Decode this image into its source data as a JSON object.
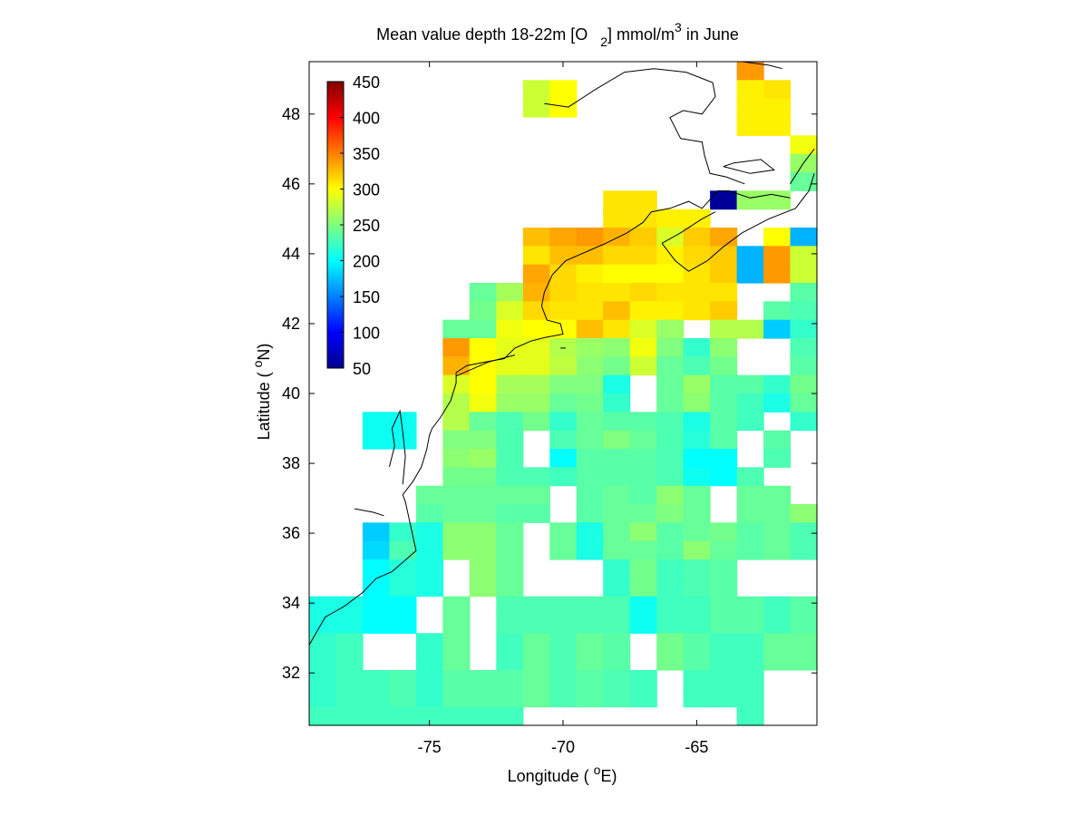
{
  "title": {
    "prefix": "Mean value depth 18-22m [O",
    "sub": "2",
    "mid": "] mmol/m",
    "sup": "3",
    "suffix": " in June"
  },
  "xlabel": {
    "prefix": "Longitude ( ",
    "sup": "o",
    "suffix": "E)"
  },
  "ylabel": {
    "prefix": "Latitude ( ",
    "sup": "o",
    "suffix": "N)"
  },
  "colorbar": {
    "range": [
      50,
      450
    ],
    "ticks": [
      "450",
      "400",
      "350",
      "300",
      "250",
      "200",
      "150",
      "100",
      "50"
    ],
    "colormap": "jet"
  },
  "chart_data": {
    "type": "heatmap",
    "title": "Mean value depth 18-22m [O2] mmol/m3 in June",
    "xlabel": "Longitude ( oE)",
    "ylabel": "Latitude ( oN)",
    "xlim": [
      -79.5,
      -60.5
    ],
    "ylim": [
      30.5,
      49.5
    ],
    "xticks": [
      -75,
      -70,
      -65
    ],
    "yticks": [
      32,
      34,
      36,
      38,
      40,
      42,
      44,
      46,
      48
    ],
    "cell_size_deg": 1,
    "grid_origin_lon": -79.5,
    "grid_origin_lat": 49.5,
    "value_range": [
      50,
      450
    ],
    "rows": [
      [
        null,
        null,
        null,
        null,
        null,
        null,
        null,
        null,
        null,
        null,
        null,
        null,
        null,
        null,
        null,
        null,
        340,
        null,
        null
      ],
      [
        null,
        null,
        null,
        null,
        null,
        null,
        null,
        null,
        280,
        300,
        null,
        null,
        null,
        null,
        null,
        null,
        305,
        310,
        null
      ],
      [
        null,
        null,
        null,
        null,
        null,
        null,
        null,
        null,
        280,
        300,
        null,
        null,
        null,
        null,
        null,
        null,
        305,
        305,
        null
      ],
      [
        null,
        null,
        null,
        null,
        null,
        null,
        null,
        null,
        null,
        null,
        null,
        null,
        null,
        null,
        null,
        null,
        305,
        305,
        null
      ],
      [
        null,
        null,
        null,
        null,
        null,
        null,
        null,
        null,
        null,
        null,
        null,
        null,
        null,
        null,
        null,
        null,
        null,
        null,
        295
      ],
      [
        null,
        null,
        null,
        null,
        null,
        null,
        null,
        null,
        null,
        null,
        null,
        null,
        null,
        null,
        null,
        null,
        null,
        null,
        260
      ],
      [
        null,
        null,
        null,
        null,
        null,
        null,
        null,
        null,
        null,
        null,
        null,
        null,
        null,
        null,
        null,
        null,
        null,
        null,
        240
      ],
      [
        null,
        null,
        null,
        null,
        null,
        null,
        null,
        null,
        null,
        null,
        null,
        310,
        310,
        null,
        null,
        60,
        260,
        260,
        null
      ],
      [
        null,
        null,
        null,
        null,
        null,
        null,
        null,
        null,
        null,
        null,
        null,
        310,
        310,
        305,
        305,
        null,
        null,
        null,
        null
      ],
      [
        null,
        null,
        null,
        null,
        null,
        null,
        null,
        null,
        325,
        335,
        340,
        330,
        320,
        285,
        320,
        335,
        null,
        300,
        170
      ],
      [
        null,
        null,
        null,
        null,
        null,
        null,
        null,
        null,
        310,
        325,
        325,
        315,
        315,
        305,
        315,
        320,
        170,
        340,
        280
      ],
      [
        null,
        null,
        null,
        null,
        null,
        null,
        null,
        null,
        335,
        315,
        305,
        300,
        300,
        300,
        310,
        320,
        170,
        340,
        280
      ],
      [
        null,
        null,
        null,
        null,
        null,
        null,
        240,
        265,
        330,
        315,
        310,
        310,
        315,
        310,
        310,
        310,
        null,
        null,
        235
      ],
      [
        null,
        null,
        null,
        null,
        null,
        null,
        245,
        285,
        315,
        310,
        310,
        325,
        305,
        305,
        310,
        320,
        null,
        235,
        230
      ],
      [
        null,
        null,
        null,
        null,
        null,
        240,
        240,
        295,
        300,
        300,
        325,
        310,
        285,
        260,
        null,
        270,
        270,
        180,
        220
      ],
      [
        null,
        null,
        null,
        null,
        null,
        340,
        300,
        290,
        290,
        270,
        260,
        255,
        295,
        250,
        220,
        255,
        null,
        null,
        230
      ],
      [
        null,
        null,
        null,
        null,
        null,
        330,
        300,
        290,
        290,
        275,
        255,
        245,
        280,
        240,
        230,
        245,
        null,
        null,
        235
      ],
      [
        null,
        null,
        null,
        null,
        null,
        285,
        300,
        265,
        265,
        250,
        250,
        210,
        null,
        240,
        260,
        235,
        235,
        220,
        245
      ],
      [
        null,
        null,
        null,
        null,
        null,
        270,
        295,
        260,
        260,
        240,
        245,
        220,
        null,
        240,
        255,
        235,
        225,
        210,
        240
      ],
      [
        null,
        null,
        205,
        205,
        null,
        270,
        240,
        230,
        245,
        220,
        240,
        235,
        235,
        230,
        210,
        235,
        225,
        null,
        220
      ],
      [
        null,
        null,
        205,
        205,
        null,
        250,
        250,
        230,
        null,
        230,
        240,
        250,
        240,
        230,
        215,
        235,
        null,
        235,
        null
      ],
      [
        null,
        null,
        null,
        null,
        null,
        255,
        260,
        230,
        null,
        200,
        235,
        235,
        235,
        230,
        200,
        200,
        null,
        230,
        null
      ],
      [
        null,
        null,
        null,
        null,
        null,
        245,
        245,
        230,
        230,
        225,
        235,
        235,
        235,
        230,
        205,
        200,
        230,
        null,
        null
      ],
      [
        null,
        null,
        null,
        null,
        240,
        240,
        240,
        240,
        240,
        null,
        235,
        240,
        235,
        255,
        240,
        null,
        240,
        240,
        null
      ],
      [
        null,
        null,
        null,
        null,
        235,
        240,
        240,
        235,
        235,
        null,
        235,
        240,
        240,
        250,
        240,
        null,
        240,
        240,
        255
      ],
      [
        null,
        null,
        180,
        220,
        210,
        255,
        255,
        240,
        null,
        240,
        210,
        240,
        255,
        235,
        240,
        245,
        235,
        240,
        230
      ],
      [
        null,
        null,
        185,
        230,
        210,
        255,
        255,
        240,
        null,
        240,
        210,
        240,
        240,
        235,
        255,
        240,
        235,
        240,
        230
      ],
      [
        null,
        null,
        200,
        215,
        210,
        null,
        255,
        240,
        null,
        null,
        null,
        220,
        245,
        225,
        230,
        235,
        null,
        null,
        null
      ],
      [
        null,
        null,
        200,
        215,
        210,
        null,
        255,
        240,
        null,
        null,
        null,
        220,
        245,
        225,
        230,
        235,
        null,
        null,
        null
      ],
      [
        210,
        210,
        200,
        200,
        null,
        240,
        null,
        230,
        230,
        230,
        230,
        230,
        205,
        225,
        225,
        235,
        235,
        225,
        235
      ],
      [
        210,
        210,
        200,
        200,
        null,
        240,
        null,
        230,
        230,
        230,
        230,
        230,
        205,
        225,
        225,
        235,
        235,
        225,
        235
      ],
      [
        220,
        225,
        null,
        null,
        220,
        240,
        null,
        225,
        240,
        230,
        240,
        235,
        null,
        245,
        235,
        225,
        225,
        240,
        240
      ],
      [
        220,
        225,
        null,
        null,
        220,
        240,
        null,
        225,
        240,
        230,
        240,
        235,
        null,
        245,
        235,
        225,
        225,
        240,
        240
      ],
      [
        220,
        225,
        225,
        230,
        220,
        235,
        235,
        235,
        240,
        230,
        235,
        230,
        225,
        null,
        225,
        225,
        225,
        null,
        null
      ],
      [
        220,
        225,
        225,
        230,
        220,
        235,
        235,
        235,
        240,
        230,
        235,
        230,
        225,
        null,
        225,
        225,
        225,
        null,
        null
      ],
      [
        225,
        225,
        225,
        225,
        225,
        225,
        225,
        225,
        null,
        null,
        null,
        null,
        null,
        null,
        null,
        null,
        225,
        null,
        null
      ]
    ]
  }
}
